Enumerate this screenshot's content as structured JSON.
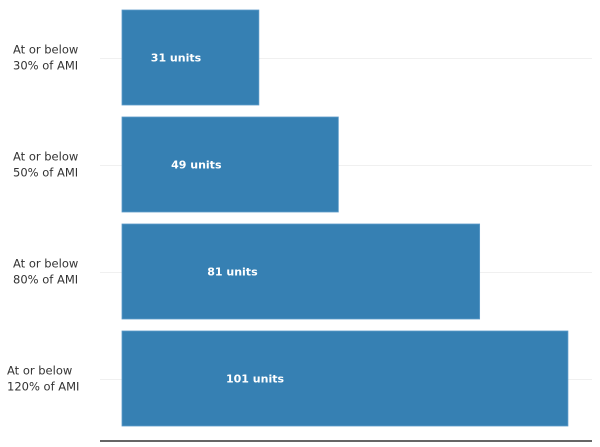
{
  "chart_data": {
    "type": "bar",
    "orientation": "horizontal",
    "categories": [
      [
        "At or below",
        "30% of AMI"
      ],
      [
        "At or below",
        "50% of AMI"
      ],
      [
        "At or below",
        "80% of AMI"
      ],
      [
        "At or below",
        "120% of AMI"
      ]
    ],
    "values": [
      31,
      49,
      81,
      101
    ],
    "data_labels": [
      "31 units",
      "49 units",
      "81 units",
      "101 units"
    ],
    "title": "",
    "xlabel": "",
    "ylabel": "",
    "xlim": [
      0,
      106
    ],
    "grid": true,
    "bar_color": "#3680b3"
  }
}
